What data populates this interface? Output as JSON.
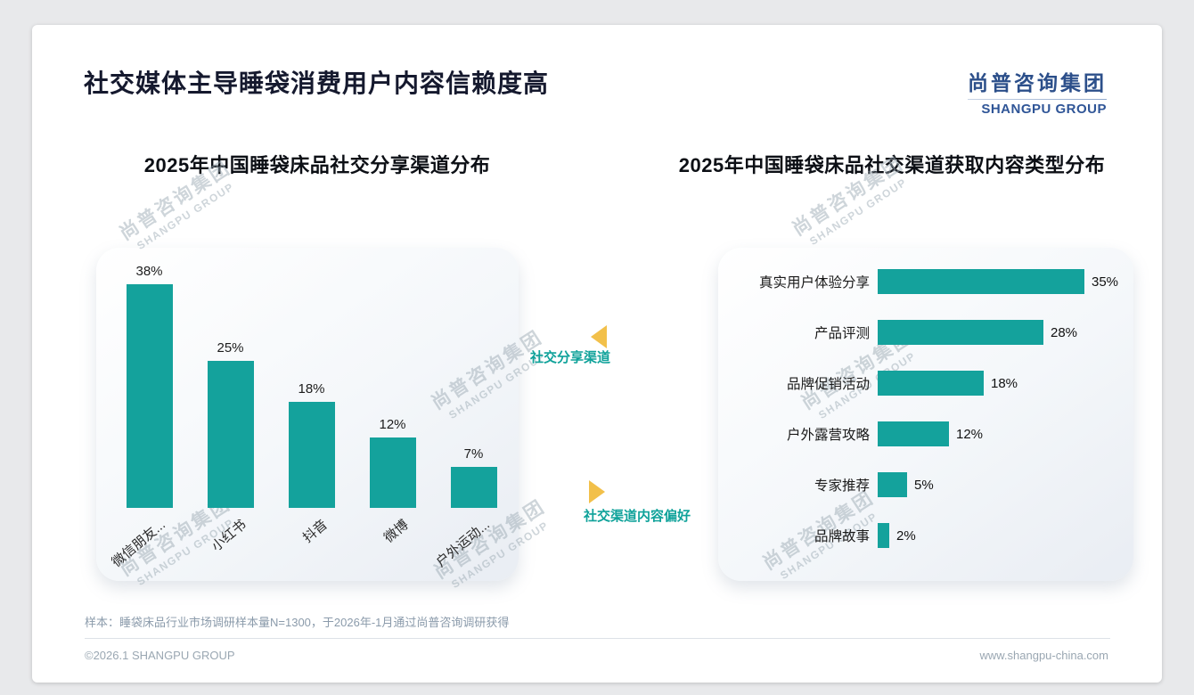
{
  "header": {
    "title": "社交媒体主导睡袋消费用户内容信赖度高",
    "logo_cn": "尚普咨询集团",
    "logo_en": "SHANGPU GROUP"
  },
  "annotations": {
    "share_channel": "社交分享渠道",
    "content_preference": "社交渠道内容偏好"
  },
  "chart_data": [
    {
      "type": "bar",
      "orientation": "vertical",
      "title": "2025年中国睡袋床品社交分享渠道分布",
      "categories": [
        "微信朋友...",
        "小红书",
        "抖音",
        "微博",
        "户外运动..."
      ],
      "values": [
        38,
        25,
        18,
        12,
        7
      ],
      "value_labels": [
        "38%",
        "25%",
        "18%",
        "12%",
        "7%"
      ],
      "ylim": [
        0,
        40
      ],
      "grid": false,
      "legend": "none",
      "bar_color": "#14a29c"
    },
    {
      "type": "bar",
      "orientation": "horizontal",
      "title": "2025年中国睡袋床品社交渠道获取内容类型分布",
      "categories": [
        "真实用户体验分享",
        "产品评测",
        "品牌促销活动",
        "户外露营攻略",
        "专家推荐",
        "品牌故事"
      ],
      "values": [
        35,
        28,
        18,
        12,
        5,
        2
      ],
      "value_labels": [
        "35%",
        "28%",
        "18%",
        "12%",
        "5%",
        "2%"
      ],
      "xlim": [
        0,
        40
      ],
      "grid": false,
      "legend": "none",
      "bar_color": "#14a29c"
    }
  ],
  "watermark": {
    "cn": "尚普咨询集团",
    "en": "SHANGPU GROUP"
  },
  "footer": {
    "note": "样本：睡袋床品行业市场调研样本量N=1300，于2026年-1月通过尚普咨询调研获得",
    "copyright": "©2026.1 SHANGPU GROUP",
    "website": "www.shangpu-china.com"
  },
  "colors": {
    "accent_teal": "#14a29c",
    "title_navy": "#15192e",
    "logo_blue": "#2f5597",
    "arrow_yellow": "#f2c04a"
  }
}
